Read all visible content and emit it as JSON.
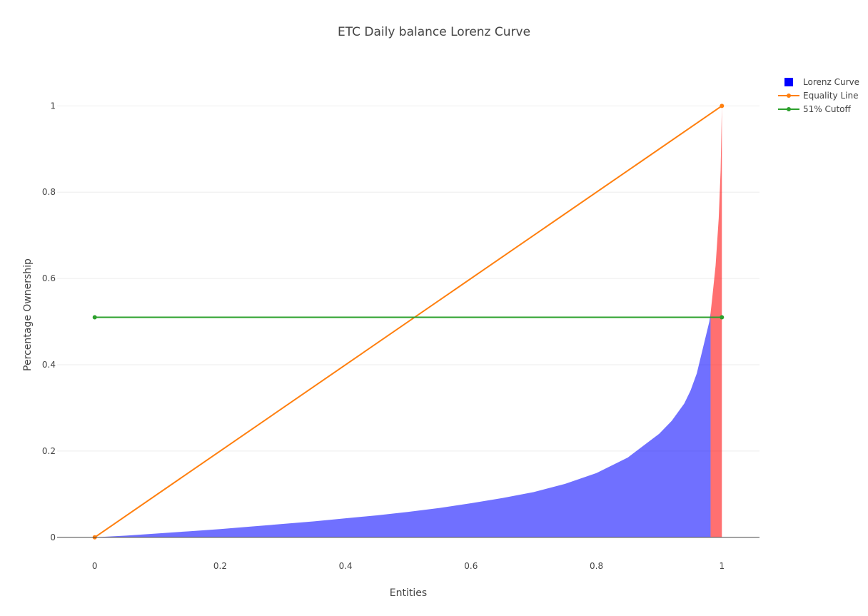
{
  "chart_data": {
    "type": "area",
    "title": "ETC Daily balance Lorenz Curve",
    "xlabel": "Entities",
    "ylabel": "Percentage Ownership",
    "xlim": [
      -0.06,
      1.06
    ],
    "ylim": [
      -0.05,
      1.08
    ],
    "x_ticks": [
      0,
      0.2,
      0.4,
      0.6,
      0.8,
      1
    ],
    "x_tick_labels": [
      "0",
      "0.2",
      "0.4",
      "0.6",
      "0.8",
      "1"
    ],
    "y_ticks": [
      0,
      0.2,
      0.4,
      0.6,
      0.8,
      1
    ],
    "y_tick_labels": [
      "0",
      "0.2",
      "0.4",
      "0.6",
      "0.8",
      "1"
    ],
    "grid": true,
    "legend_position": "top-right",
    "series": [
      {
        "name": "Lorenz Curve",
        "kind": "filled-area",
        "color": "#0000ff",
        "highlight_color": "#ff0000",
        "highlight_from_x": 0.982,
        "x": [
          0,
          0.05,
          0.1,
          0.15,
          0.2,
          0.25,
          0.3,
          0.35,
          0.4,
          0.45,
          0.5,
          0.55,
          0.6,
          0.65,
          0.7,
          0.75,
          0.8,
          0.85,
          0.9,
          0.92,
          0.94,
          0.95,
          0.96,
          0.97,
          0.975,
          0.98,
          0.982,
          0.985,
          0.99,
          0.995,
          0.998,
          1
        ],
        "y": [
          0,
          0.004,
          0.009,
          0.014,
          0.019,
          0.025,
          0.031,
          0.037,
          0.044,
          0.051,
          0.059,
          0.068,
          0.079,
          0.091,
          0.105,
          0.124,
          0.149,
          0.185,
          0.24,
          0.27,
          0.31,
          0.34,
          0.38,
          0.44,
          0.47,
          0.5,
          0.52,
          0.56,
          0.63,
          0.74,
          0.85,
          1.0
        ]
      },
      {
        "name": "Equality Line",
        "kind": "line-markers",
        "color": "#ff7f0e",
        "x": [
          0,
          1
        ],
        "y": [
          0,
          1
        ]
      },
      {
        "name": "51% Cutoff",
        "kind": "line-markers",
        "color": "#2ca02c",
        "x": [
          0,
          1
        ],
        "y": [
          0.51,
          0.51
        ]
      }
    ]
  }
}
